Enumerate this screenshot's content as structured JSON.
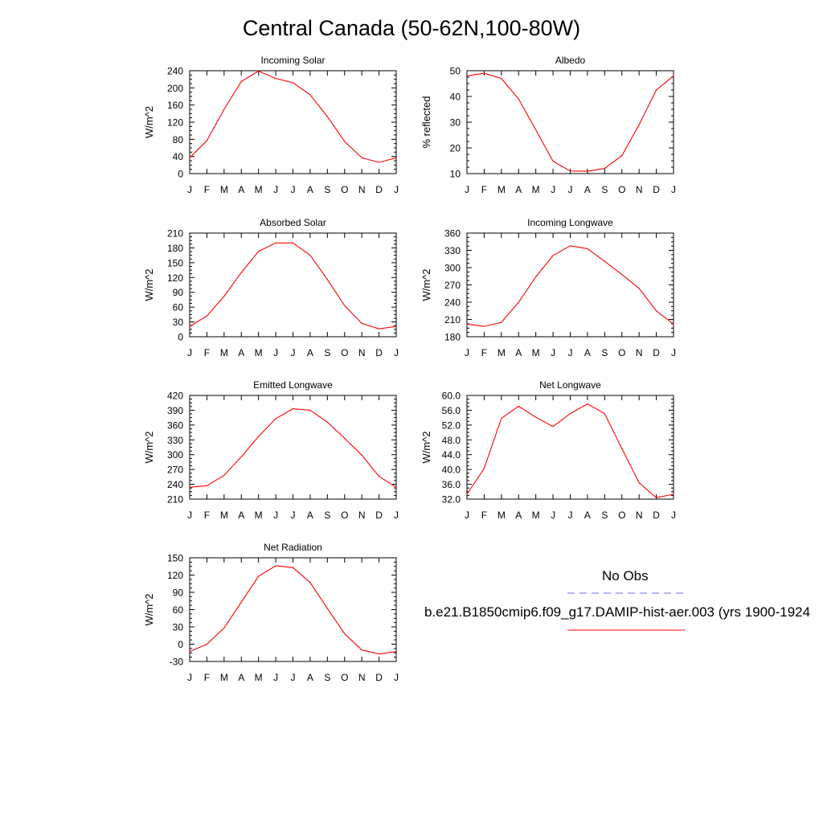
{
  "title": "Central Canada (50-62N,100-80W)",
  "colors": {
    "model": "#ff0000",
    "obs": "#6a6aff",
    "axis": "#000000"
  },
  "legend": {
    "obs_label": "No Obs",
    "model_label": "b.e21.B1850cmip6.f09_g17.DAMIP-hist-aer.003 (yrs 1900-1924"
  },
  "chart_data": [
    {
      "type": "line",
      "title": "Incoming Solar",
      "ylabel": "W/m^2",
      "categories": [
        "J",
        "F",
        "M",
        "A",
        "M",
        "J",
        "J",
        "A",
        "S",
        "O",
        "N",
        "D",
        "J"
      ],
      "ylim": [
        0,
        240
      ],
      "yticks": [
        "0",
        "40",
        "80",
        "120",
        "160",
        "200",
        "240"
      ],
      "ytick_values": [
        0,
        40,
        80,
        120,
        160,
        200,
        240
      ],
      "series": [
        {
          "values": [
            37,
            77,
            150,
            215,
            239,
            222,
            212,
            184,
            133,
            75,
            37,
            26,
            37
          ]
        }
      ]
    },
    {
      "type": "line",
      "title": "Albedo",
      "ylabel": "% reflected",
      "categories": [
        "J",
        "F",
        "M",
        "A",
        "M",
        "J",
        "J",
        "A",
        "S",
        "O",
        "N",
        "D",
        "J"
      ],
      "ylim": [
        10,
        50
      ],
      "yticks": [
        "10",
        "20",
        "30",
        "40",
        "50"
      ],
      "ytick_values": [
        10,
        20,
        30,
        40,
        50
      ],
      "series": [
        {
          "values": [
            48,
            49,
            47,
            39,
            27,
            14.8,
            11,
            10.9,
            12,
            17,
            29,
            42.5,
            48
          ]
        }
      ]
    },
    {
      "type": "line",
      "title": "Absorbed Solar",
      "ylabel": "W/m^2",
      "categories": [
        "J",
        "F",
        "M",
        "A",
        "M",
        "J",
        "J",
        "A",
        "S",
        "O",
        "N",
        "D",
        "J"
      ],
      "ylim": [
        0,
        210
      ],
      "yticks": [
        "0",
        "30",
        "60",
        "90",
        "120",
        "150",
        "180",
        "210"
      ],
      "ytick_values": [
        0,
        30,
        60,
        90,
        120,
        150,
        180,
        210
      ],
      "series": [
        {
          "values": [
            21,
            42,
            82,
            130,
            173,
            190,
            190,
            165,
            116,
            63,
            27,
            16,
            21
          ]
        }
      ]
    },
    {
      "type": "line",
      "title": "Incoming Longwave",
      "ylabel": "W/m^2",
      "categories": [
        "J",
        "F",
        "M",
        "A",
        "M",
        "J",
        "J",
        "A",
        "S",
        "O",
        "N",
        "D",
        "J"
      ],
      "ylim": [
        180,
        360
      ],
      "yticks": [
        "180",
        "210",
        "240",
        "270",
        "300",
        "330",
        "360"
      ],
      "ytick_values": [
        180,
        210,
        240,
        270,
        300,
        330,
        360
      ],
      "series": [
        {
          "values": [
            202,
            198,
            205,
            240,
            284,
            321,
            338,
            333,
            311,
            288,
            264,
            225,
            202
          ]
        }
      ]
    },
    {
      "type": "line",
      "title": "Emitted Longwave",
      "ylabel": "W/m^2",
      "categories": [
        "J",
        "F",
        "M",
        "A",
        "M",
        "J",
        "J",
        "A",
        "S",
        "O",
        "N",
        "D",
        "J"
      ],
      "ylim": [
        210,
        420
      ],
      "yticks": [
        "210",
        "240",
        "270",
        "300",
        "330",
        "360",
        "390",
        "420"
      ],
      "ytick_values": [
        210,
        240,
        270,
        300,
        330,
        360,
        390,
        420
      ],
      "series": [
        {
          "values": [
            234,
            237,
            258,
            296,
            337,
            373,
            393,
            390,
            366,
            333,
            299,
            256,
            234
          ]
        }
      ]
    },
    {
      "type": "line",
      "title": "Net Longwave",
      "ylabel": "W/m^2",
      "categories": [
        "J",
        "F",
        "M",
        "A",
        "M",
        "J",
        "J",
        "A",
        "S",
        "O",
        "N",
        "D",
        "J"
      ],
      "ylim": [
        32,
        60
      ],
      "yticks": [
        "32.0",
        "36.0",
        "40.0",
        "44.0",
        "48.0",
        "52.0",
        "56.0",
        "60.0"
      ],
      "ytick_values": [
        32,
        36,
        40,
        44,
        48,
        52,
        56,
        60
      ],
      "series": [
        {
          "values": [
            33.3,
            40.3,
            53.8,
            57.1,
            54.1,
            51.6,
            55.1,
            57.7,
            55.1,
            45.6,
            36.4,
            32.4,
            33.3
          ]
        }
      ]
    },
    {
      "type": "line",
      "title": "Net Radiation",
      "ylabel": "W/m^2",
      "categories": [
        "J",
        "F",
        "M",
        "A",
        "M",
        "J",
        "J",
        "A",
        "S",
        "O",
        "N",
        "D",
        "J"
      ],
      "ylim": [
        -30,
        150
      ],
      "yticks": [
        "-30",
        "0",
        "30",
        "60",
        "90",
        "120",
        "150"
      ],
      "ytick_values": [
        -30,
        0,
        30,
        60,
        90,
        120,
        150
      ],
      "series": [
        {
          "values": [
            -13,
            0,
            28,
            73,
            118,
            136,
            133,
            107,
            62,
            18,
            -10,
            -17,
            -13
          ]
        }
      ]
    }
  ]
}
